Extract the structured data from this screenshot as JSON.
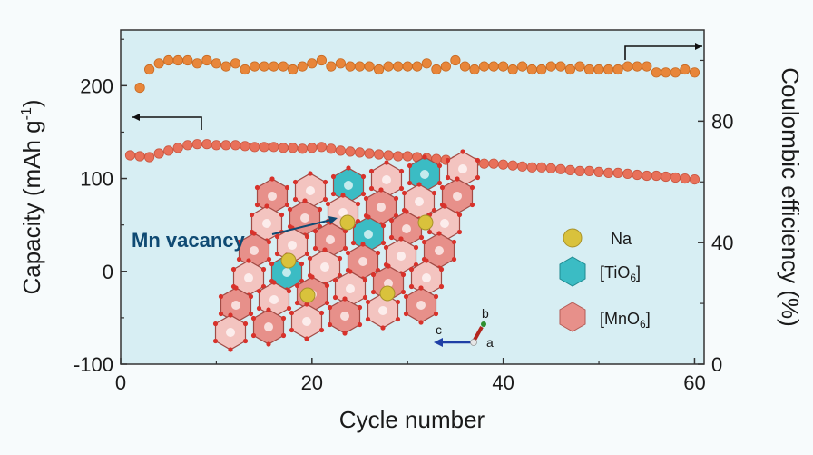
{
  "chart_data": {
    "type": "scatter",
    "xlabel": "Cycle number",
    "ylabel_left": "Capacity (mAh g",
    "ylabel_left_sup": "-1",
    "ylabel_left_tail": ")",
    "ylabel_right": "Coulombic efficiency (%)",
    "xlim": [
      0,
      61
    ],
    "ylim_left": [
      -100,
      260
    ],
    "ylim_right": [
      0,
      110
    ],
    "x_ticks": [
      "0",
      "20",
      "40",
      "60"
    ],
    "y_left_ticks": [
      "-100",
      "0",
      "100",
      "200"
    ],
    "y_right_ticks": [
      "0",
      "40",
      "80"
    ],
    "series": [
      {
        "axis": "right",
        "color": "#e8863a",
        "x": [
          2,
          3,
          4,
          5,
          6,
          7,
          8,
          9,
          10,
          11,
          12,
          13,
          14,
          15,
          16,
          17,
          18,
          19,
          20,
          21,
          22,
          23,
          24,
          25,
          26,
          27,
          28,
          29,
          30,
          31,
          32,
          33,
          34,
          35,
          36,
          37,
          38,
          39,
          40,
          41,
          42,
          43,
          44,
          45,
          46,
          47,
          48,
          49,
          50,
          51,
          52,
          53,
          54,
          55,
          56,
          57,
          58,
          59,
          60
        ],
        "values": [
          91,
          97,
          99,
          100,
          100,
          100,
          99,
          100,
          99,
          98,
          99,
          97,
          98,
          98,
          98,
          98,
          97,
          98,
          99,
          100,
          98,
          99,
          98,
          98,
          98,
          97,
          98,
          98,
          98,
          98,
          99,
          97,
          98,
          100,
          98,
          97,
          98,
          98,
          98,
          97,
          98,
          97,
          97,
          98,
          98,
          97,
          98,
          97,
          97,
          97,
          97,
          98,
          98,
          98,
          96,
          96,
          96,
          97,
          96
        ]
      },
      {
        "axis": "left",
        "color": "#e8715a",
        "x": [
          1,
          2,
          3,
          4,
          5,
          6,
          7,
          8,
          9,
          10,
          11,
          12,
          13,
          14,
          15,
          16,
          17,
          18,
          19,
          20,
          21,
          22,
          23,
          24,
          25,
          26,
          27,
          28,
          29,
          30,
          31,
          32,
          33,
          34,
          35,
          36,
          37,
          38,
          39,
          40,
          41,
          42,
          43,
          44,
          45,
          46,
          47,
          48,
          49,
          50,
          51,
          52,
          53,
          54,
          55,
          56,
          57,
          58,
          59,
          60
        ],
        "values": [
          125,
          124,
          123,
          127,
          130,
          133,
          136,
          137,
          137,
          136,
          136,
          136,
          135,
          134,
          134,
          134,
          133,
          133,
          132,
          133,
          134,
          132,
          130,
          129,
          128,
          127,
          126,
          125,
          124,
          124,
          123,
          122,
          121,
          120,
          119,
          118,
          117,
          116,
          116,
          115,
          114,
          113,
          112,
          112,
          111,
          110,
          109,
          108,
          108,
          107,
          106,
          106,
          105,
          104,
          103,
          103,
          102,
          101,
          100,
          99
        ]
      }
    ],
    "legend": [
      {
        "label": "Na",
        "kind": "atom"
      },
      {
        "label": "[TiO",
        "sub": "6",
        "tail": "]",
        "kind": "ti-octahedron"
      },
      {
        "label": "[MnO",
        "sub": "6",
        "tail": "]",
        "kind": "mn-octahedron"
      }
    ],
    "annotations": {
      "mn_vacancy": "Mn vacancy",
      "axis_b": "b",
      "axis_c": "c",
      "axis_a": "a"
    },
    "colors": {
      "plot_bg": "#d7eef3",
      "na": "#d9c23c",
      "ti": "#3bbcc4",
      "mn": "#e7908a",
      "vacancy_text": "#0f4a73"
    },
    "grid": false
  }
}
